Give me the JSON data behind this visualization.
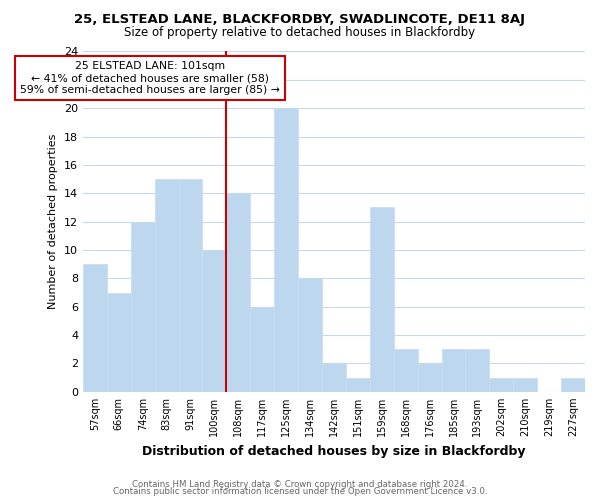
{
  "title1": "25, ELSTEAD LANE, BLACKFORDBY, SWADLINCOTE, DE11 8AJ",
  "title2": "Size of property relative to detached houses in Blackfordby",
  "xlabel": "Distribution of detached houses by size in Blackfordby",
  "ylabel": "Number of detached properties",
  "footer1": "Contains HM Land Registry data © Crown copyright and database right 2024.",
  "footer2": "Contains public sector information licensed under the Open Government Licence v3.0.",
  "bin_labels": [
    "57sqm",
    "66sqm",
    "74sqm",
    "83sqm",
    "91sqm",
    "100sqm",
    "108sqm",
    "117sqm",
    "125sqm",
    "134sqm",
    "142sqm",
    "151sqm",
    "159sqm",
    "168sqm",
    "176sqm",
    "185sqm",
    "193sqm",
    "202sqm",
    "210sqm",
    "219sqm",
    "227sqm"
  ],
  "bar_heights": [
    9,
    7,
    12,
    15,
    15,
    10,
    14,
    6,
    20,
    8,
    2,
    1,
    13,
    3,
    2,
    3,
    3,
    1,
    1,
    0,
    1
  ],
  "bar_color": "#bdd7ee",
  "bar_edge_color": "#c5ddf0",
  "grid_color": "#c8d8e8",
  "reference_line_color": "#cc0000",
  "annotation_line1": "25 ELSTEAD LANE: 101sqm",
  "annotation_line2": "← 41% of detached houses are smaller (58)",
  "annotation_line3": "59% of semi-detached houses are larger (85) →",
  "annotation_box_color": "#ffffff",
  "annotation_box_edge": "#cc0000",
  "ylim": [
    0,
    24
  ],
  "yticks": [
    0,
    2,
    4,
    6,
    8,
    10,
    12,
    14,
    16,
    18,
    20,
    22,
    24
  ],
  "background_color": "#ffffff",
  "ref_bar_index": 5
}
